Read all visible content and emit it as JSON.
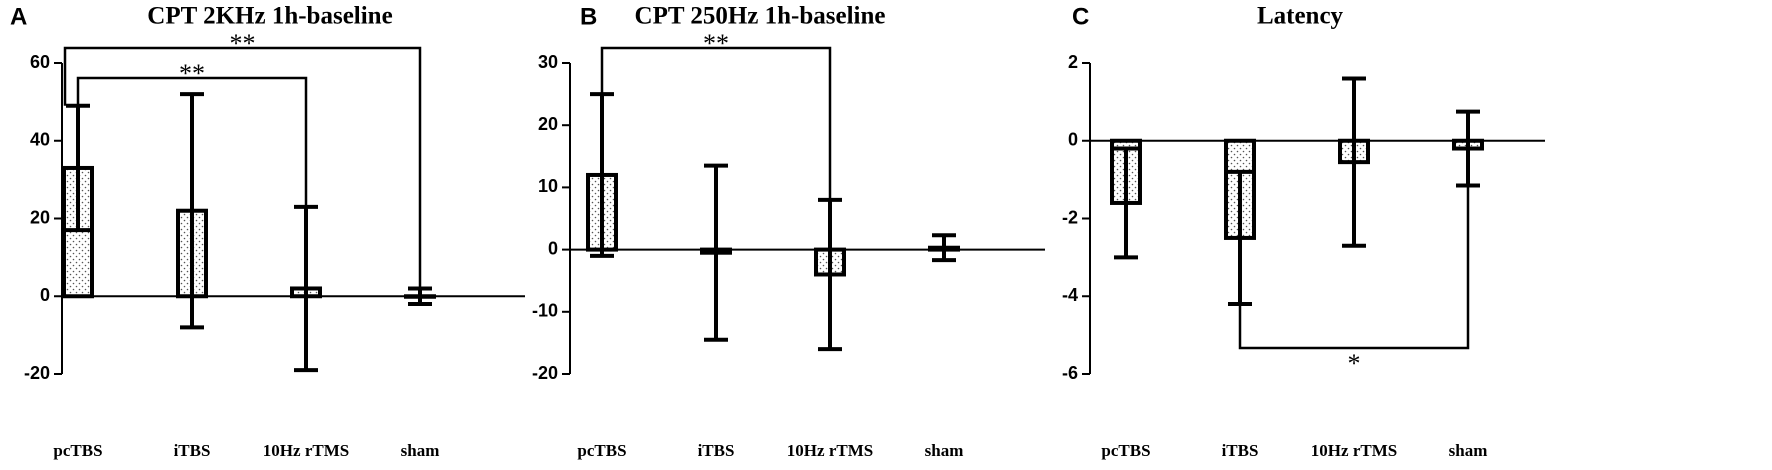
{
  "chart_data": [
    {
      "type": "bar",
      "panel": "A",
      "title": "CPT 2KHz 1h-baseline",
      "categories": [
        "pcTBS",
        "iTBS",
        "10Hz rTMS",
        "sham"
      ],
      "values": [
        33,
        22,
        2,
        0
      ],
      "errors": [
        16,
        30,
        21,
        2
      ],
      "ylim": [
        -20,
        60
      ],
      "yticks": [
        -20,
        0,
        20,
        40,
        60
      ],
      "annotations": [
        "**",
        "**"
      ]
    },
    {
      "type": "bar",
      "panel": "B",
      "title": "CPT 250Hz 1h-baseline",
      "categories": [
        "pcTBS",
        "iTBS",
        "10Hz rTMS",
        "sham"
      ],
      "values": [
        12,
        -0.5,
        -4,
        0.3
      ],
      "errors": [
        13,
        14,
        12,
        2
      ],
      "ylim": [
        -20,
        30
      ],
      "yticks": [
        -20,
        -10,
        0,
        10,
        20,
        30
      ],
      "annotations": [
        "**"
      ]
    },
    {
      "type": "bar",
      "panel": "C",
      "title": "Latency",
      "categories": [
        "pcTBS",
        "iTBS",
        "10Hz rTMS",
        "sham"
      ],
      "values": [
        -1.6,
        -2.5,
        -0.55,
        -0.2
      ],
      "errors": [
        1.4,
        1.7,
        2.15,
        0.95
      ],
      "ylim": [
        -6,
        2
      ],
      "yticks": [
        -6,
        -4,
        -2,
        0,
        2
      ],
      "annotations": [
        "*"
      ]
    }
  ]
}
